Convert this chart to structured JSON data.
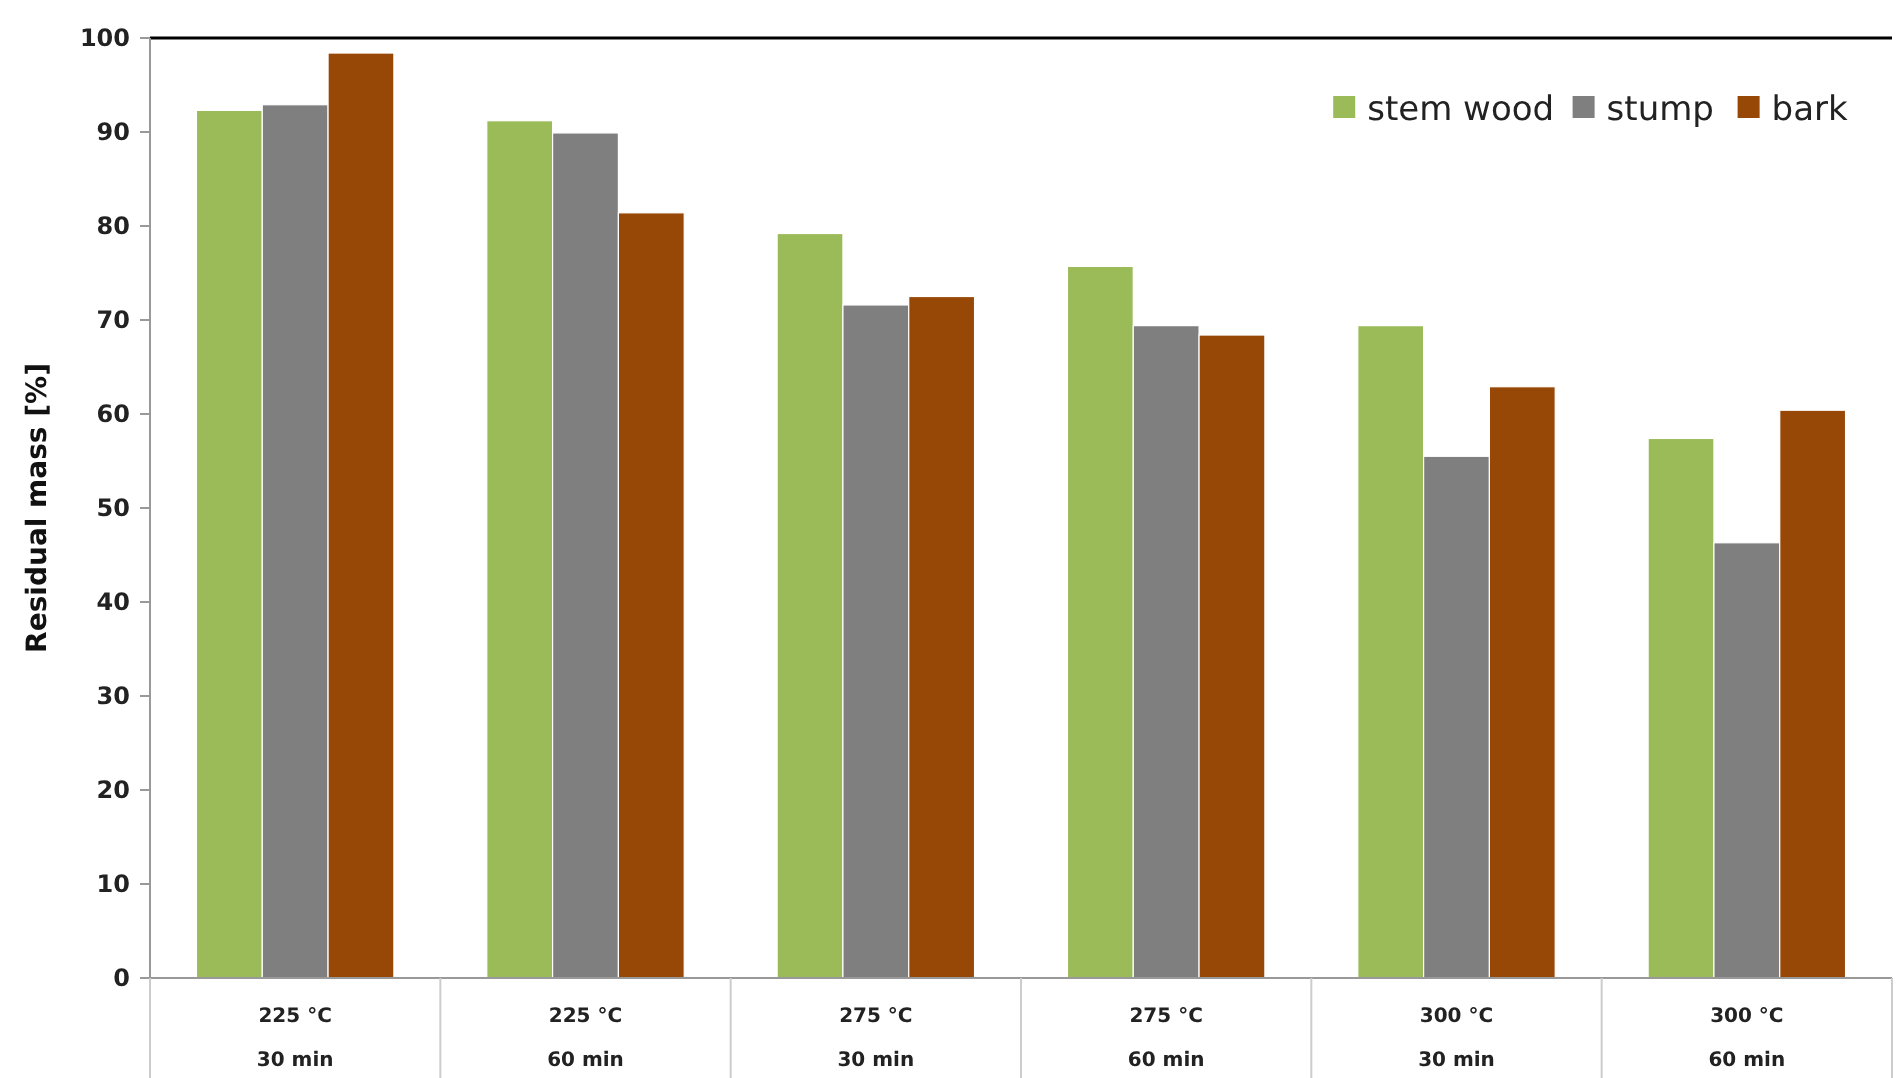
{
  "chart_data": {
    "type": "bar",
    "ylabel": "Residual mass [%]",
    "categories": [
      "225 °C\n30 min",
      "225 °C\n60 min",
      "275 °C\n30 min",
      "275 °C\n60 min",
      "300 °C\n30 min",
      "300 °C\n60 min"
    ],
    "series": [
      {
        "name": "stem wood",
        "color": "#9bbb59",
        "values": [
          92.3,
          91.2,
          79.2,
          75.7,
          69.4,
          57.4
        ]
      },
      {
        "name": "stump",
        "color": "#7f7f7f",
        "values": [
          92.9,
          89.9,
          71.6,
          69.4,
          55.5,
          46.3
        ]
      },
      {
        "name": "bark",
        "color": "#974706",
        "values": [
          98.4,
          81.4,
          72.5,
          68.4,
          62.9,
          60.4
        ]
      }
    ],
    "ylim": [
      0,
      100
    ],
    "yticks": [
      0,
      10,
      20,
      30,
      40,
      50,
      60,
      70,
      80,
      90,
      100
    ],
    "grid": false,
    "legend": "top right"
  }
}
